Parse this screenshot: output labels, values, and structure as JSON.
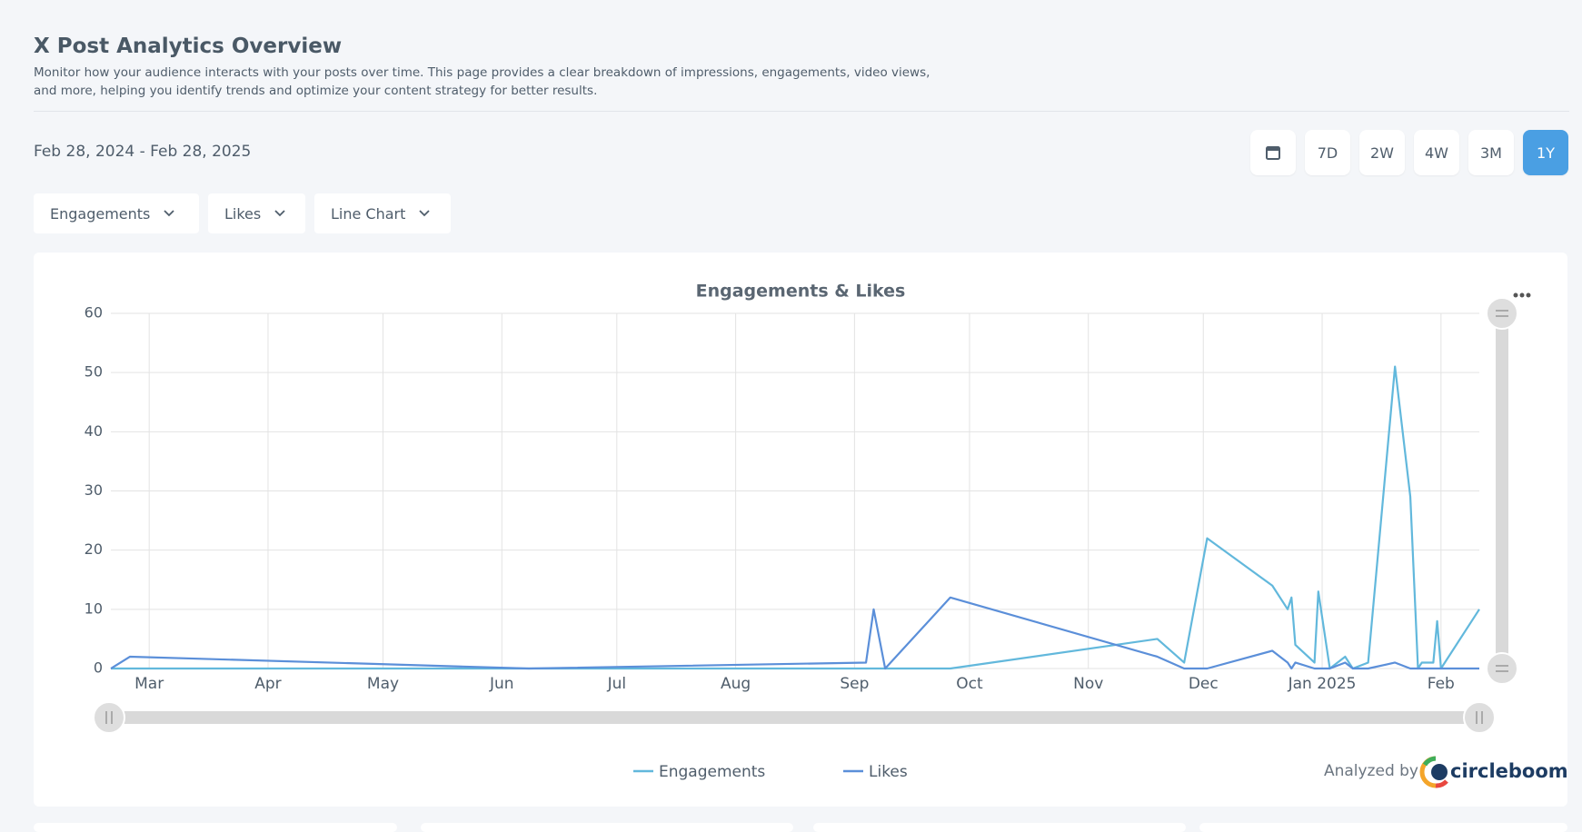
{
  "header": {
    "title": "X Post Analytics Overview",
    "description": "Monitor how your audience interacts with your posts over time. This page provides a clear breakdown of impressions, engagements, video views, and more, helping you identify trends and optimize your content strategy for better results."
  },
  "date_range": "Feb 28, 2024 - Feb 28, 2025",
  "range_buttons": [
    "7D",
    "2W",
    "4W",
    "3M",
    "1Y"
  ],
  "active_range": "1Y",
  "dropdowns": [
    "Engagements",
    "Likes",
    "Line Chart"
  ],
  "footer": {
    "analyzed_by": "Analyzed by",
    "brand": "circleboom"
  },
  "chart_data": {
    "type": "line",
    "title": "Engagements & Likes",
    "x": [
      "2024-02-20",
      "2024-02-25",
      "2024-06-08",
      "2024-09-04",
      "2024-09-06",
      "2024-09-09",
      "2024-09-26",
      "2024-11-19",
      "2024-11-26",
      "2024-12-02",
      "2024-12-19",
      "2024-12-23",
      "2024-12-24",
      "2024-12-25",
      "2024-12-30",
      "2024-12-31",
      "2025-01-03",
      "2025-01-07",
      "2025-01-09",
      "2025-01-13",
      "2025-01-20",
      "2025-01-24",
      "2025-01-26",
      "2025-01-27",
      "2025-01-30",
      "2025-01-31",
      "2025-02-01",
      "2025-02-11"
    ],
    "series": [
      {
        "name": "Engagements",
        "color": "#62b8dc",
        "values": [
          0,
          0,
          0,
          0,
          0,
          0,
          0,
          5,
          1,
          22,
          14,
          10,
          12,
          4,
          1,
          13,
          0,
          2,
          0,
          1,
          51,
          29,
          0,
          1,
          1,
          8,
          0,
          10
        ]
      },
      {
        "name": "Likes",
        "color": "#5b8fd9",
        "values": [
          0,
          2,
          0,
          1,
          10,
          0,
          12,
          2,
          0,
          0,
          3,
          1,
          0,
          1,
          0,
          0,
          0,
          1,
          0,
          0,
          1,
          0,
          0,
          0,
          0,
          0,
          0,
          0
        ]
      }
    ],
    "xlim": [
      "2024-02-20",
      "2025-02-11"
    ],
    "xticks": [
      {
        "value": "2024-03-01",
        "label": "Mar"
      },
      {
        "value": "2024-04-01",
        "label": "Apr"
      },
      {
        "value": "2024-05-01",
        "label": "May"
      },
      {
        "value": "2024-06-01",
        "label": "Jun"
      },
      {
        "value": "2024-07-01",
        "label": "Jul"
      },
      {
        "value": "2024-08-01",
        "label": "Aug"
      },
      {
        "value": "2024-09-01",
        "label": "Sep"
      },
      {
        "value": "2024-10-01",
        "label": "Oct"
      },
      {
        "value": "2024-11-01",
        "label": "Nov"
      },
      {
        "value": "2024-12-01",
        "label": "Dec"
      },
      {
        "value": "2025-01-01",
        "label": "Jan 2025"
      },
      {
        "value": "2025-02-01",
        "label": "Feb"
      }
    ],
    "ylim": [
      0,
      60
    ],
    "yticks": [
      0,
      10,
      20,
      30,
      40,
      50,
      60
    ],
    "grid": true
  }
}
